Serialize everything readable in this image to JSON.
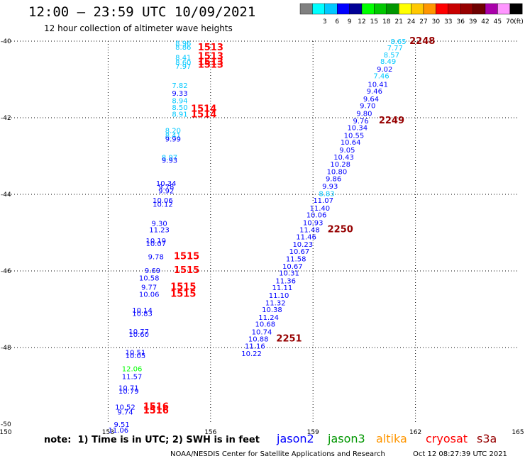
{
  "header": {
    "title": "12:00 – 23:59 UTC 10/09/2021",
    "subtitle": "12 hour collection of altimeter wave heights"
  },
  "color_scale": {
    "unit": "(ft)",
    "bins": [
      {
        "label": "",
        "color": "#808080"
      },
      {
        "label": "3",
        "color": "#00ffff"
      },
      {
        "label": "6",
        "color": "#00c8ff"
      },
      {
        "label": "9",
        "color": "#0000ff"
      },
      {
        "label": "12",
        "color": "#000096"
      },
      {
        "label": "15",
        "color": "#00ff00"
      },
      {
        "label": "18",
        "color": "#00c800"
      },
      {
        "label": "21",
        "color": "#009600"
      },
      {
        "label": "24",
        "color": "#ffff00"
      },
      {
        "label": "27",
        "color": "#ffc800"
      },
      {
        "label": "30",
        "color": "#ff9600"
      },
      {
        "label": "33",
        "color": "#ff0000"
      },
      {
        "label": "36",
        "color": "#c80000"
      },
      {
        "label": "39",
        "color": "#960000"
      },
      {
        "label": "42",
        "color": "#6e0000"
      },
      {
        "label": "45",
        "color": "#aa00aa"
      },
      {
        "label": "70",
        "color": "#ff96ff"
      },
      {
        "label": "",
        "color": "#000000"
      }
    ]
  },
  "footer": {
    "note": "note:  1) Time is in UTC; 2) SWH is in feet",
    "satellites": [
      {
        "name": "jason2",
        "color": "#0000ff"
      },
      {
        "name": "jason3",
        "color": "#009600"
      },
      {
        "name": "altika",
        "color": "#ff9600"
      },
      {
        "name": "cryosat",
        "color": "#ff0000"
      },
      {
        "name": "s3a",
        "color": "#960000"
      }
    ],
    "credit": "NOAA/NESDIS Center for Satellite Applications and Research",
    "timestamp": "Oct 12 08:27:39 UTC 2021"
  },
  "chart_data": {
    "type": "scatter",
    "title": "12:00 – 23:59 UTC 10/09/2021",
    "subtitle": "12 hour collection of altimeter wave heights",
    "xlim": [
      150,
      165
    ],
    "ylim": [
      -50,
      -40
    ],
    "x_ticks": [
      "150",
      "153",
      "156",
      "159",
      "162",
      "165"
    ],
    "y_ticks": [
      "-40",
      "-42",
      "-44",
      "-46",
      "-48",
      "-50"
    ],
    "grid": true,
    "labels": [
      {
        "x": 155.2,
        "y": -40.05,
        "text": "8.96",
        "color": "#00c8ff"
      },
      {
        "x": 155.2,
        "y": -40.15,
        "text": "8.86",
        "color": "#00c8ff"
      },
      {
        "x": 155.2,
        "y": -40.42,
        "text": "8.41",
        "color": "#00c8ff"
      },
      {
        "x": 155.2,
        "y": -40.55,
        "text": "8.60",
        "color": "#00c8ff"
      },
      {
        "x": 155.2,
        "y": -40.65,
        "text": "7.97",
        "color": "#00c8ff"
      },
      {
        "x": 156.0,
        "y": -40.17,
        "text": "1513",
        "color": "#ff0000",
        "big": true
      },
      {
        "x": 156.0,
        "y": -40.4,
        "text": "1513",
        "color": "#ff0000",
        "big": true
      },
      {
        "x": 156.0,
        "y": -40.55,
        "text": "1513",
        "color": "#ff0000",
        "big": true
      },
      {
        "x": 156.0,
        "y": -40.62,
        "text": "1513",
        "color": "#ff0000",
        "big": true
      },
      {
        "x": 155.1,
        "y": -41.15,
        "text": "7.82",
        "color": "#00c8ff"
      },
      {
        "x": 155.1,
        "y": -41.35,
        "text": "9.33",
        "color": "#0000ff"
      },
      {
        "x": 155.1,
        "y": -41.55,
        "text": "8.94",
        "color": "#00c8ff"
      },
      {
        "x": 155.1,
        "y": -41.72,
        "text": "8.50",
        "color": "#00c8ff"
      },
      {
        "x": 155.1,
        "y": -41.9,
        "text": "8.91",
        "color": "#00c8ff"
      },
      {
        "x": 155.8,
        "y": -41.77,
        "text": "1514",
        "color": "#ff0000",
        "big": true
      },
      {
        "x": 155.8,
        "y": -41.92,
        "text": "1514",
        "color": "#ff0000",
        "big": true
      },
      {
        "x": 154.9,
        "y": -42.32,
        "text": "8.20",
        "color": "#00c8ff"
      },
      {
        "x": 154.9,
        "y": -42.45,
        "text": "8.41",
        "color": "#00c8ff"
      },
      {
        "x": 154.9,
        "y": -42.55,
        "text": "9.99",
        "color": "#0000ff"
      },
      {
        "x": 154.8,
        "y": -43.03,
        "text": "8.97",
        "color": "#00c8ff"
      },
      {
        "x": 154.8,
        "y": -43.1,
        "text": "9.93",
        "color": "#0000ff"
      },
      {
        "x": 154.7,
        "y": -43.7,
        "text": "10.34",
        "color": "#0000ff"
      },
      {
        "x": 154.7,
        "y": -43.8,
        "text": "9.78",
        "color": "#0000ff"
      },
      {
        "x": 154.7,
        "y": -43.9,
        "text": "9.92",
        "color": "#0000ff"
      },
      {
        "x": 154.6,
        "y": -44.15,
        "text": "10.06",
        "color": "#0000ff"
      },
      {
        "x": 154.6,
        "y": -44.25,
        "text": "10.12",
        "color": "#0000ff"
      },
      {
        "x": 154.5,
        "y": -44.75,
        "text": "9.30",
        "color": "#0000ff"
      },
      {
        "x": 154.5,
        "y": -44.92,
        "text": "11.23",
        "color": "#0000ff"
      },
      {
        "x": 154.4,
        "y": -45.2,
        "text": "10.19",
        "color": "#0000ff"
      },
      {
        "x": 154.4,
        "y": -45.28,
        "text": "10.07",
        "color": "#0000ff"
      },
      {
        "x": 154.4,
        "y": -45.62,
        "text": "9.78",
        "color": "#0000ff"
      },
      {
        "x": 155.3,
        "y": -45.62,
        "text": "1515",
        "color": "#ff0000",
        "big": true
      },
      {
        "x": 154.3,
        "y": -45.98,
        "text": "9.69",
        "color": "#0000ff"
      },
      {
        "x": 155.3,
        "y": -45.98,
        "text": "1515",
        "color": "#ff0000",
        "big": true
      },
      {
        "x": 154.2,
        "y": -46.18,
        "text": "10.58",
        "color": "#0000ff"
      },
      {
        "x": 154.2,
        "y": -46.42,
        "text": "9.77",
        "color": "#0000ff"
      },
      {
        "x": 154.2,
        "y": -46.6,
        "text": "10.06",
        "color": "#0000ff"
      },
      {
        "x": 155.2,
        "y": -46.42,
        "text": "1515",
        "color": "#ff0000",
        "big": true
      },
      {
        "x": 155.2,
        "y": -46.6,
        "text": "1515",
        "color": "#ff0000",
        "big": true
      },
      {
        "x": 154.0,
        "y": -47.02,
        "text": "10.14",
        "color": "#0000ff"
      },
      {
        "x": 154.0,
        "y": -47.1,
        "text": "10.83",
        "color": "#0000ff"
      },
      {
        "x": 153.9,
        "y": -47.57,
        "text": "10.77",
        "color": "#0000ff"
      },
      {
        "x": 153.9,
        "y": -47.65,
        "text": "10.60",
        "color": "#0000ff"
      },
      {
        "x": 153.8,
        "y": -48.12,
        "text": "10.51",
        "color": "#0000ff"
      },
      {
        "x": 153.8,
        "y": -48.2,
        "text": "10.05",
        "color": "#0000ff"
      },
      {
        "x": 153.7,
        "y": -48.55,
        "text": "12.06",
        "color": "#00ff00"
      },
      {
        "x": 153.7,
        "y": -48.75,
        "text": "11.57",
        "color": "#0000ff"
      },
      {
        "x": 153.6,
        "y": -49.05,
        "text": "10.71",
        "color": "#0000ff"
      },
      {
        "x": 153.6,
        "y": -49.13,
        "text": "10.79",
        "color": "#0000ff"
      },
      {
        "x": 153.5,
        "y": -49.55,
        "text": "10.52",
        "color": "#0000ff"
      },
      {
        "x": 153.5,
        "y": -49.68,
        "text": "9.74",
        "color": "#0000ff"
      },
      {
        "x": 154.4,
        "y": -49.55,
        "text": "1516",
        "color": "#ff0000",
        "big": true
      },
      {
        "x": 154.4,
        "y": -49.65,
        "text": "1516",
        "color": "#ff0000",
        "big": true
      },
      {
        "x": 153.4,
        "y": -50.0,
        "text": "9.51",
        "color": "#0000ff"
      },
      {
        "x": 153.3,
        "y": -50.15,
        "text": "11.06",
        "color": "#0000ff"
      },
      {
        "x": 161.5,
        "y": -40.0,
        "text": "8.65",
        "color": "#00c8ff"
      },
      {
        "x": 162.2,
        "y": -40.0,
        "text": "2248",
        "color": "#960000",
        "big": true
      },
      {
        "x": 161.4,
        "y": -40.17,
        "text": "7.77",
        "color": "#00c8ff"
      },
      {
        "x": 161.3,
        "y": -40.35,
        "text": "8.57",
        "color": "#00c8ff"
      },
      {
        "x": 161.2,
        "y": -40.52,
        "text": "8.49",
        "color": "#00c8ff"
      },
      {
        "x": 161.1,
        "y": -40.72,
        "text": "9.02",
        "color": "#0000ff"
      },
      {
        "x": 161.0,
        "y": -40.9,
        "text": "7.46",
        "color": "#00c8ff"
      },
      {
        "x": 160.9,
        "y": -41.12,
        "text": "10.41",
        "color": "#0000ff"
      },
      {
        "x": 160.8,
        "y": -41.3,
        "text": "9.46",
        "color": "#0000ff"
      },
      {
        "x": 160.7,
        "y": -41.5,
        "text": "9.64",
        "color": "#0000ff"
      },
      {
        "x": 160.6,
        "y": -41.68,
        "text": "9.70",
        "color": "#0000ff"
      },
      {
        "x": 160.5,
        "y": -41.88,
        "text": "9.80",
        "color": "#0000ff"
      },
      {
        "x": 160.4,
        "y": -42.07,
        "text": "9.76",
        "color": "#0000ff"
      },
      {
        "x": 161.3,
        "y": -42.07,
        "text": "2249",
        "color": "#960000",
        "big": true
      },
      {
        "x": 160.3,
        "y": -42.25,
        "text": "10.34",
        "color": "#0000ff"
      },
      {
        "x": 160.2,
        "y": -42.45,
        "text": "10.55",
        "color": "#0000ff"
      },
      {
        "x": 160.1,
        "y": -42.63,
        "text": "10.64",
        "color": "#0000ff"
      },
      {
        "x": 160.0,
        "y": -42.83,
        "text": "9.05",
        "color": "#0000ff"
      },
      {
        "x": 159.9,
        "y": -43.02,
        "text": "10.43",
        "color": "#0000ff"
      },
      {
        "x": 159.8,
        "y": -43.2,
        "text": "10.28",
        "color": "#0000ff"
      },
      {
        "x": 159.7,
        "y": -43.4,
        "text": "10.80",
        "color": "#0000ff"
      },
      {
        "x": 159.6,
        "y": -43.58,
        "text": "9.86",
        "color": "#0000ff"
      },
      {
        "x": 159.5,
        "y": -43.78,
        "text": "9.93",
        "color": "#0000ff"
      },
      {
        "x": 159.4,
        "y": -43.97,
        "text": "8.83",
        "color": "#00c8ff"
      },
      {
        "x": 159.3,
        "y": -44.15,
        "text": "11.07",
        "color": "#0000ff"
      },
      {
        "x": 159.2,
        "y": -44.35,
        "text": "11.40",
        "color": "#0000ff"
      },
      {
        "x": 159.1,
        "y": -44.53,
        "text": "10.06",
        "color": "#0000ff"
      },
      {
        "x": 159.0,
        "y": -44.73,
        "text": "10.93",
        "color": "#0000ff"
      },
      {
        "x": 158.9,
        "y": -44.92,
        "text": "11.48",
        "color": "#0000ff"
      },
      {
        "x": 159.8,
        "y": -44.92,
        "text": "2250",
        "color": "#960000",
        "big": true
      },
      {
        "x": 158.8,
        "y": -45.1,
        "text": "11.46",
        "color": "#0000ff"
      },
      {
        "x": 158.7,
        "y": -45.3,
        "text": "10.23",
        "color": "#0000ff"
      },
      {
        "x": 158.6,
        "y": -45.48,
        "text": "10.67",
        "color": "#0000ff"
      },
      {
        "x": 158.5,
        "y": -45.68,
        "text": "11.58",
        "color": "#0000ff"
      },
      {
        "x": 158.4,
        "y": -45.87,
        "text": "10.67",
        "color": "#0000ff"
      },
      {
        "x": 158.3,
        "y": -46.05,
        "text": "10.31",
        "color": "#0000ff"
      },
      {
        "x": 158.2,
        "y": -46.25,
        "text": "11.36",
        "color": "#0000ff"
      },
      {
        "x": 158.1,
        "y": -46.43,
        "text": "11.11",
        "color": "#0000ff"
      },
      {
        "x": 158.0,
        "y": -46.63,
        "text": "11.10",
        "color": "#0000ff"
      },
      {
        "x": 157.9,
        "y": -46.82,
        "text": "11.32",
        "color": "#0000ff"
      },
      {
        "x": 157.8,
        "y": -47.0,
        "text": "10.38",
        "color": "#0000ff"
      },
      {
        "x": 157.7,
        "y": -47.2,
        "text": "11.24",
        "color": "#0000ff"
      },
      {
        "x": 157.6,
        "y": -47.38,
        "text": "10.68",
        "color": "#0000ff"
      },
      {
        "x": 157.5,
        "y": -47.58,
        "text": "10.74",
        "color": "#0000ff"
      },
      {
        "x": 157.4,
        "y": -47.77,
        "text": "10.88",
        "color": "#0000ff"
      },
      {
        "x": 158.3,
        "y": -47.77,
        "text": "2251",
        "color": "#960000",
        "big": true
      },
      {
        "x": 157.3,
        "y": -47.95,
        "text": "11.16",
        "color": "#0000ff"
      },
      {
        "x": 157.2,
        "y": -48.15,
        "text": "10.22",
        "color": "#0000ff"
      }
    ]
  }
}
